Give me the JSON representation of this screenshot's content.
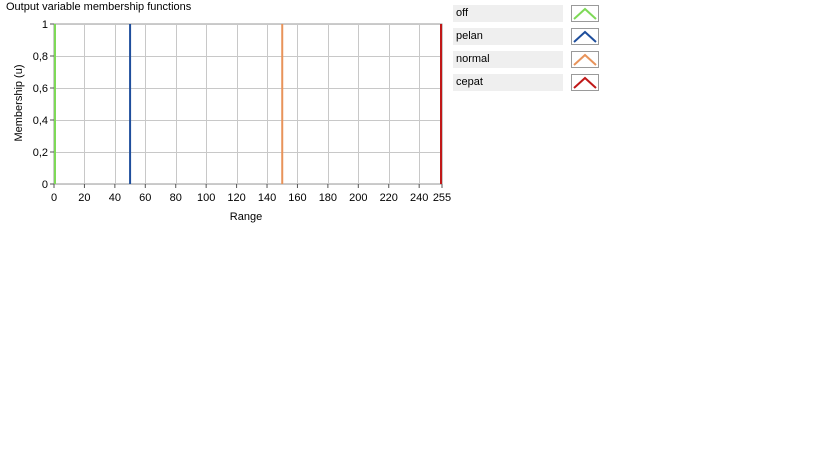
{
  "chart_data": {
    "type": "line",
    "title": "Output variable membership functions",
    "xlabel": "Range",
    "ylabel": "Membership (u)",
    "xlim": [
      0,
      255
    ],
    "ylim": [
      0,
      1
    ],
    "x_ticks": [
      "0",
      "20",
      "40",
      "60",
      "80",
      "100",
      "120",
      "140",
      "160",
      "180",
      "200",
      "220",
      "240",
      "255"
    ],
    "x_tick_values": [
      0,
      20,
      40,
      60,
      80,
      100,
      120,
      140,
      160,
      180,
      200,
      220,
      240,
      255
    ],
    "y_ticks": [
      "0",
      "0,2",
      "0,4",
      "0,6",
      "0,8",
      "1"
    ],
    "y_tick_values": [
      0,
      0.2,
      0.4,
      0.6,
      0.8,
      1
    ],
    "grid": true,
    "legend_position": "right",
    "series": [
      {
        "name": "off",
        "color": "#7ed957",
        "points": [
          [
            0,
            0
          ],
          [
            0,
            1
          ],
          [
            0,
            0
          ]
        ]
      },
      {
        "name": "pelan",
        "color": "#1f4e9c",
        "points": [
          [
            50,
            0
          ],
          [
            50,
            1
          ],
          [
            50,
            0
          ]
        ]
      },
      {
        "name": "normal",
        "color": "#e8935a",
        "points": [
          [
            150,
            0
          ],
          [
            150,
            1
          ],
          [
            150,
            0
          ]
        ]
      },
      {
        "name": "cepat",
        "color": "#c01818",
        "points": [
          [
            255,
            0
          ],
          [
            255,
            1
          ],
          [
            255,
            0
          ]
        ]
      }
    ]
  },
  "colors": {
    "grid": "#c8c8c8",
    "frame": "#9a9a9a",
    "legend_label_bg": "#efefef"
  }
}
